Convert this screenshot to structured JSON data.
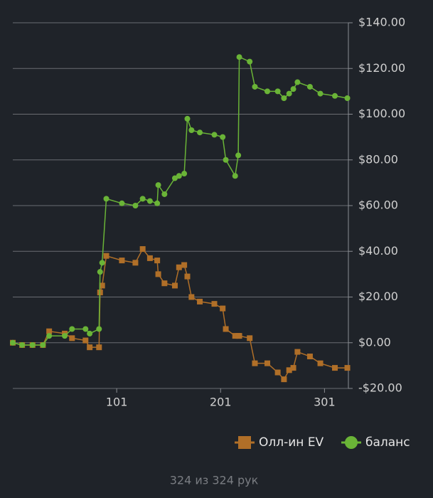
{
  "chart_data": {
    "type": "line",
    "x": [
      1,
      10,
      20,
      30,
      36,
      51,
      58,
      71,
      75,
      84,
      85,
      87,
      91,
      106,
      119,
      126,
      133,
      140,
      141,
      147,
      157,
      161,
      166,
      169,
      173,
      181,
      195,
      203,
      206,
      215,
      218,
      219,
      229,
      234,
      246,
      256,
      262,
      267,
      271,
      275,
      287,
      297,
      311,
      323
    ],
    "series": [
      {
        "name": "Олл-ин EV",
        "color": "#b06f28",
        "marker": "square",
        "values": [
          0,
          -1,
          -1,
          -1,
          5,
          4,
          2,
          1,
          -2,
          -2,
          22,
          25,
          38,
          36,
          35,
          41,
          37,
          36,
          30,
          26,
          25,
          33,
          34,
          29,
          20,
          18,
          17,
          15,
          6,
          3,
          3,
          3,
          2,
          -9,
          -9,
          -13,
          -16,
          -12,
          -11,
          -4,
          -6,
          -9,
          -11,
          -11
        ]
      },
      {
        "name": "баланс",
        "color": "#6ab437",
        "marker": "circle",
        "values": [
          0,
          -1,
          -1,
          -1,
          3,
          3,
          6,
          6,
          4,
          6,
          31,
          35,
          63,
          61,
          60,
          63,
          62,
          61,
          69,
          65,
          72,
          73,
          74,
          98,
          93,
          92,
          91,
          90,
          80,
          73,
          82,
          125,
          123,
          112,
          110,
          110,
          107,
          109,
          111,
          114,
          112,
          109,
          108,
          107
        ]
      }
    ],
    "xlim": [
      1,
      324
    ],
    "xticks": [
      101,
      201,
      301
    ],
    "ylim": [
      -20,
      140
    ],
    "yticks": [
      {
        "value": -20,
        "label": "-$20.00"
      },
      {
        "value": 0,
        "label": "$0.00"
      },
      {
        "value": 20,
        "label": "$20.00"
      },
      {
        "value": 40,
        "label": "$40.00"
      },
      {
        "value": 60,
        "label": "$60.00"
      },
      {
        "value": 80,
        "label": "$80.00"
      },
      {
        "value": 100,
        "label": "$100.00"
      },
      {
        "value": 120,
        "label": "$120.00"
      },
      {
        "value": 140,
        "label": "$140.00"
      }
    ],
    "grid": true,
    "legend": "bottom-right",
    "footer": "324 из 324 рук"
  }
}
